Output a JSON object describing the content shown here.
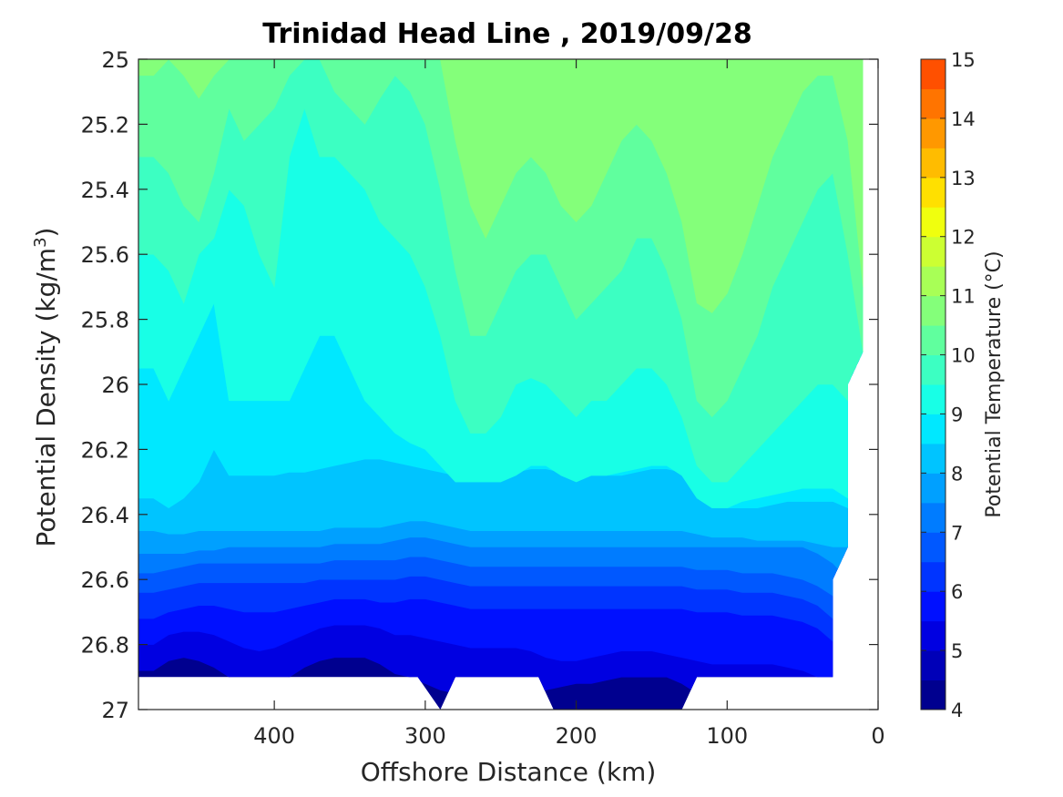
{
  "chart_data": {
    "type": "heatmap",
    "subtype": "filled-contour",
    "title": "Trinidad Head Line , 2019/09/28",
    "xlabel": "Offshore Distance (km)",
    "ylabel": "Potential Density (kg/m",
    "ylabel_superscript": "3",
    "ylabel_suffix": ")",
    "x_reversed": true,
    "y_reversed": true,
    "xlim": [
      490,
      0
    ],
    "ylim": [
      25,
      27
    ],
    "xticks": [
      400,
      300,
      200,
      100,
      0
    ],
    "xtick_labels": [
      "400",
      "300",
      "200",
      "100",
      "0"
    ],
    "yticks": [
      25,
      25.2,
      25.4,
      25.6,
      25.8,
      26,
      26.2,
      26.4,
      26.6,
      26.8,
      27
    ],
    "ytick_labels": [
      "25",
      "25.2",
      "25.4",
      "25.6",
      "25.8",
      "26",
      "26.2",
      "26.4",
      "26.6",
      "26.8",
      "27"
    ],
    "grid": false,
    "colorbar": {
      "label": "Potential Temperature (°C)",
      "min": 4,
      "max": 15,
      "step": 0.5,
      "ticks": [
        4,
        5,
        6,
        7,
        8,
        9,
        10,
        11,
        12,
        13,
        14,
        15
      ],
      "tick_labels": [
        "4",
        "5",
        "6",
        "7",
        "8",
        "9",
        "10",
        "11",
        "12",
        "13",
        "14",
        "15"
      ],
      "colors": [
        "#00008f",
        "#0000b8",
        "#0000e1",
        "#0010ff",
        "#0034ff",
        "#0058ff",
        "#007cff",
        "#00a0ff",
        "#00c4ff",
        "#00e8ff",
        "#18ffe6",
        "#3cffc2",
        "#60ff9e",
        "#84ff7a",
        "#a8ff56",
        "#ccff32",
        "#f0ff0e",
        "#ffe000",
        "#ffbc00",
        "#ff9800",
        "#ff7400",
        "#ff5000",
        "#ff2c00",
        "#f80800",
        "#c80000"
      ]
    },
    "stations_km": [
      480,
      470,
      460,
      450,
      440,
      430,
      420,
      410,
      400,
      390,
      380,
      370,
      360,
      350,
      340,
      330,
      320,
      310,
      300,
      290,
      280,
      270,
      260,
      250,
      240,
      230,
      220,
      210,
      200,
      190,
      180,
      170,
      160,
      150,
      140,
      130,
      120,
      110,
      100,
      90,
      80,
      70,
      60,
      50,
      40,
      30,
      20,
      10
    ],
    "isotherm_density": {
      "10.5": [
        25.05,
        25.0,
        25.05,
        25.12,
        25.05,
        25.0,
        25.0,
        25.0,
        25.0,
        25.0,
        25.0,
        25.0,
        25.0,
        25.0,
        25.0,
        25.0,
        25.0,
        25.0,
        25.0,
        25.0,
        25.25,
        25.45,
        25.55,
        25.45,
        25.35,
        25.3,
        25.35,
        25.45,
        25.5,
        25.45,
        25.35,
        25.25,
        25.2,
        25.25,
        25.35,
        25.5,
        25.75,
        25.78,
        25.72,
        25.6,
        25.45,
        25.3,
        25.2,
        25.1,
        25.05,
        25.05,
        25.25,
        25.7
      ],
      "10": [
        25.3,
        25.35,
        25.45,
        25.5,
        25.35,
        25.15,
        25.25,
        25.2,
        25.15,
        25.05,
        25.0,
        25.0,
        25.1,
        25.15,
        25.2,
        25.12,
        25.05,
        25.1,
        25.2,
        25.4,
        25.65,
        25.85,
        25.85,
        25.75,
        25.65,
        25.6,
        25.6,
        25.7,
        25.8,
        25.75,
        25.7,
        25.65,
        25.55,
        25.55,
        25.65,
        25.8,
        26.05,
        26.1,
        26.05,
        25.95,
        25.85,
        25.7,
        25.6,
        25.5,
        25.4,
        25.35,
        25.6,
        25.9
      ],
      "9.5": [
        25.6,
        25.65,
        25.75,
        25.6,
        25.55,
        25.4,
        25.45,
        25.6,
        25.7,
        25.3,
        25.15,
        25.3,
        25.3,
        25.35,
        25.4,
        25.5,
        25.55,
        25.6,
        25.7,
        25.85,
        26.05,
        26.15,
        26.15,
        26.1,
        26.0,
        25.98,
        26.0,
        26.05,
        26.1,
        26.05,
        26.05,
        26.0,
        25.95,
        25.95,
        26.0,
        26.1,
        26.25,
        26.3,
        26.3,
        26.25,
        26.2,
        26.15,
        26.1,
        26.05,
        26.0,
        26.0,
        26.05,
        26.15
      ],
      "9": [
        25.95,
        26.05,
        25.95,
        25.85,
        25.75,
        26.05,
        26.05,
        26.05,
        26.05,
        26.05,
        25.95,
        25.85,
        25.85,
        25.95,
        26.05,
        26.1,
        26.15,
        26.18,
        26.2,
        26.25,
        26.3,
        26.3,
        26.3,
        26.3,
        26.28,
        26.25,
        26.25,
        26.28,
        26.3,
        26.28,
        26.28,
        26.27,
        26.26,
        26.25,
        26.25,
        26.28,
        26.35,
        26.38,
        26.38,
        26.36,
        26.35,
        26.34,
        26.33,
        26.32,
        26.32,
        26.32,
        26.35,
        26.4
      ],
      "8.5": [
        26.35,
        26.38,
        26.35,
        26.3,
        26.2,
        26.28,
        26.28,
        26.28,
        26.28,
        26.27,
        26.27,
        26.26,
        26.25,
        26.24,
        26.23,
        26.23,
        26.24,
        26.25,
        26.26,
        26.27,
        26.28,
        26.28,
        26.28,
        26.28,
        26.27,
        26.26,
        26.26,
        26.27,
        26.28,
        26.28,
        26.28,
        26.28,
        26.27,
        26.26,
        26.26,
        26.27,
        26.32,
        26.36,
        26.38,
        26.38,
        26.38,
        26.37,
        26.36,
        26.36,
        26.36,
        26.36,
        26.38,
        26.4
      ],
      "8": [
        26.45,
        26.46,
        26.46,
        26.45,
        26.45,
        26.45,
        26.45,
        26.45,
        26.45,
        26.45,
        26.45,
        26.45,
        26.44,
        26.44,
        26.44,
        26.44,
        26.43,
        26.42,
        26.42,
        26.43,
        26.44,
        26.45,
        26.45,
        26.45,
        26.45,
        26.45,
        26.45,
        26.45,
        26.45,
        26.45,
        26.45,
        26.45,
        26.45,
        26.45,
        26.45,
        26.45,
        26.46,
        26.47,
        26.47,
        26.47,
        26.48,
        26.48,
        26.48,
        26.48,
        26.49,
        26.5,
        26.5,
        26.5
      ],
      "7.5": [
        26.52,
        26.52,
        26.52,
        26.51,
        26.51,
        26.5,
        26.5,
        26.5,
        26.5,
        26.5,
        26.5,
        26.5,
        26.49,
        26.49,
        26.49,
        26.49,
        26.48,
        26.47,
        26.47,
        26.48,
        26.49,
        26.5,
        26.5,
        26.5,
        26.5,
        26.5,
        26.5,
        26.5,
        26.5,
        26.5,
        26.5,
        26.5,
        26.5,
        26.5,
        26.5,
        26.5,
        26.5,
        26.5,
        26.5,
        26.5,
        26.5,
        26.5,
        26.5,
        26.5,
        26.52,
        26.55,
        26.6,
        26.6
      ],
      "7": [
        26.58,
        26.57,
        26.56,
        26.55,
        26.55,
        26.55,
        26.55,
        26.55,
        26.55,
        26.55,
        26.55,
        26.55,
        26.54,
        26.54,
        26.54,
        26.54,
        26.54,
        26.53,
        26.53,
        26.54,
        26.55,
        26.56,
        26.56,
        26.56,
        26.56,
        26.56,
        26.56,
        26.56,
        26.56,
        26.56,
        26.56,
        26.56,
        26.56,
        26.56,
        26.56,
        26.56,
        26.57,
        26.57,
        26.57,
        26.58,
        26.58,
        26.58,
        26.59,
        26.6,
        26.62,
        26.65,
        26.7,
        26.7
      ],
      "6.5": [
        26.64,
        26.63,
        26.62,
        26.61,
        26.61,
        26.61,
        26.61,
        26.61,
        26.61,
        26.61,
        26.61,
        26.6,
        26.6,
        26.6,
        26.6,
        26.6,
        26.6,
        26.59,
        26.59,
        26.6,
        26.61,
        26.62,
        26.62,
        26.62,
        26.62,
        26.62,
        26.62,
        26.62,
        26.62,
        26.62,
        26.62,
        26.62,
        26.62,
        26.62,
        26.62,
        26.62,
        26.63,
        26.63,
        26.63,
        26.64,
        26.64,
        26.64,
        26.65,
        26.66,
        26.68,
        26.72,
        26.78,
        26.78
      ],
      "6": [
        26.72,
        26.7,
        26.69,
        26.68,
        26.68,
        26.69,
        26.7,
        26.7,
        26.7,
        26.69,
        26.68,
        26.67,
        26.66,
        26.66,
        26.66,
        26.67,
        26.67,
        26.66,
        26.66,
        26.67,
        26.68,
        26.69,
        26.69,
        26.69,
        26.69,
        26.69,
        26.69,
        26.69,
        26.69,
        26.69,
        26.69,
        26.69,
        26.69,
        26.69,
        26.69,
        26.69,
        26.7,
        26.7,
        26.7,
        26.71,
        26.71,
        26.71,
        26.72,
        26.73,
        26.75,
        26.79,
        26.85,
        26.85
      ],
      "5.5": [
        26.8,
        26.77,
        26.76,
        26.76,
        26.77,
        26.79,
        26.81,
        26.82,
        26.81,
        26.79,
        26.77,
        26.75,
        26.74,
        26.74,
        26.74,
        26.75,
        26.77,
        26.77,
        26.78,
        26.79,
        26.8,
        26.81,
        26.81,
        26.81,
        26.81,
        26.82,
        26.84,
        26.85,
        26.85,
        26.84,
        26.83,
        26.82,
        26.82,
        26.82,
        26.83,
        26.84,
        26.85,
        26.86,
        26.86,
        26.86,
        26.86,
        26.86,
        26.87,
        26.88,
        26.9,
        26.92,
        26.95,
        26.95
      ],
      "5": [
        26.88,
        26.85,
        26.84,
        26.85,
        26.87,
        26.9,
        26.92,
        26.93,
        26.92,
        26.9,
        26.87,
        26.85,
        26.84,
        26.84,
        26.84,
        26.86,
        26.89,
        26.9,
        26.92,
        26.94,
        26.95,
        26.96,
        26.96,
        26.96,
        26.95,
        26.95,
        26.94,
        26.93,
        26.92,
        26.92,
        26.91,
        26.9,
        26.9,
        26.9,
        26.9,
        26.92,
        26.95,
        26.97,
        26.98,
        26.98,
        26.98,
        26.98,
        26.98,
        26.98,
        26.98,
        26.98,
        26.98,
        26.98
      ]
    },
    "data_boundary": {
      "left_km": 490,
      "right_edge": [
        [
          10,
          25.0
        ],
        [
          10,
          25.9
        ],
        [
          20,
          26.0
        ],
        [
          20,
          26.5
        ],
        [
          30,
          26.6
        ],
        [
          30,
          26.9
        ]
      ],
      "bottom_edge": [
        [
          490,
          26.9
        ],
        [
          305,
          26.9
        ],
        [
          290,
          27.0
        ],
        [
          280,
          26.9
        ],
        [
          225,
          26.9
        ],
        [
          215,
          27.0
        ],
        [
          130,
          27.0
        ],
        [
          120,
          26.9
        ],
        [
          30,
          26.9
        ]
      ]
    }
  }
}
